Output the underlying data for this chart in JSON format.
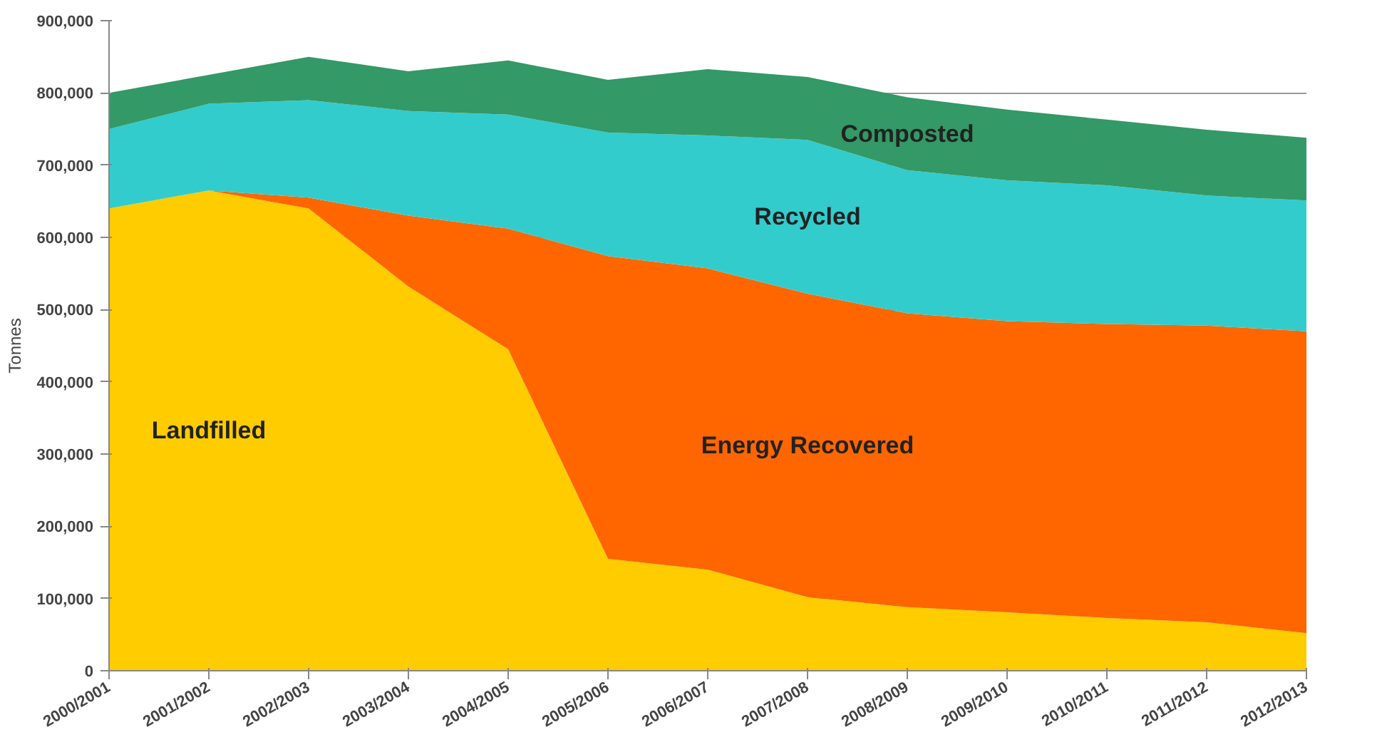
{
  "chart_data": {
    "type": "area",
    "stacked": true,
    "ylabel": "Tonnes",
    "categories": [
      "2000/2001",
      "2001/2002",
      "2002/2003",
      "2003/2004",
      "2004/2005",
      "2005/2006",
      "2006/2007",
      "2007/2008",
      "2008/2009",
      "2009/2010",
      "2010/2011",
      "2011/2012",
      "2012/2013"
    ],
    "series": [
      {
        "name": "Landfilled",
        "color": "#ffcc00",
        "values": [
          640000,
          665000,
          640000,
          532000,
          445000,
          155000,
          140000,
          102000,
          88000,
          81000,
          73000,
          67000,
          52000
        ]
      },
      {
        "name": "Energy Recovered",
        "color": "#ff6600",
        "values": [
          0,
          0,
          15000,
          98000,
          167000,
          419000,
          417000,
          420000,
          407000,
          403000,
          407000,
          411000,
          418000
        ]
      },
      {
        "name": "Recycled",
        "color": "#33cccc",
        "values": [
          110000,
          120000,
          135000,
          145000,
          158000,
          171000,
          184000,
          213000,
          198000,
          195000,
          192000,
          180000,
          181000
        ]
      },
      {
        "name": "Composted",
        "color": "#339966",
        "values": [
          50000,
          40000,
          60000,
          55000,
          75000,
          73000,
          92000,
          87000,
          101000,
          98000,
          91000,
          91000,
          87000
        ]
      }
    ],
    "ylim": [
      0,
      900000
    ],
    "yticks": [
      0,
      {
        "value": 100000,
        "label": "100,000"
      },
      {
        "value": 200000,
        "label": "200,000"
      },
      {
        "value": 300000,
        "label": "300,000"
      },
      {
        "value": 400000,
        "label": "400,000"
      },
      {
        "value": 500000,
        "label": "500,000"
      },
      {
        "value": 600000,
        "label": "600,000"
      },
      {
        "value": 700000,
        "label": "700,000"
      },
      {
        "value": 800000,
        "label": "800,000"
      },
      {
        "value": 900000,
        "label": "900,000"
      }
    ],
    "grid": "y"
  }
}
